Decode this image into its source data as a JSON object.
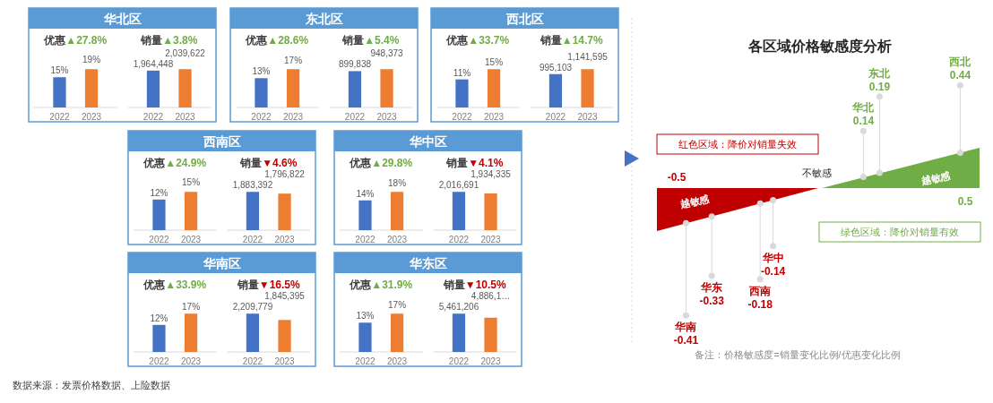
{
  "chart_data": [
    {
      "type": "bar",
      "title": "华北区",
      "subtitle": "优惠",
      "annotations": [
        "▲27.8%",
        "数据来源：发票价格数据、上险数据"
      ],
      "categories": [
        "2022",
        "2023"
      ],
      "values": [
        15,
        19
      ],
      "value_labels": [
        "15%",
        "19%"
      ],
      "colors": [
        "#4472c4",
        "#ed7d31"
      ]
    },
    {
      "type": "bar",
      "subtitle": "销量",
      "annotations": [
        "▲3.8%"
      ],
      "categories": [
        "2022",
        "2023"
      ],
      "values": [
        1964448,
        2039622
      ],
      "value_labels": [
        "1,964,448",
        "2,039,622"
      ],
      "colors": [
        "#4472c4",
        "#ed7d31"
      ]
    },
    {
      "type": "bar",
      "title": "东北区",
      "subtitle": "优惠",
      "annotations": [
        "▲28.6%"
      ],
      "categories": [
        "2022",
        "2023"
      ],
      "values": [
        13,
        17
      ],
      "value_labels": [
        "13%",
        "17%"
      ],
      "colors": [
        "#4472c4",
        "#ed7d31"
      ]
    },
    {
      "type": "bar",
      "subtitle": "销量",
      "annotations": [
        "▲5.4%"
      ],
      "categories": [
        "2022",
        "2023"
      ],
      "values": [
        899838,
        948373
      ],
      "value_labels": [
        "899,838",
        "948,373"
      ],
      "colors": [
        "#4472c4",
        "#ed7d31"
      ]
    },
    {
      "type": "bar",
      "title": "西北区",
      "subtitle": "优惠",
      "annotations": [
        "▲33.7%"
      ],
      "categories": [
        "2022",
        "2023"
      ],
      "values": [
        11,
        15
      ],
      "value_labels": [
        "11%",
        "15%"
      ],
      "colors": [
        "#4472c4",
        "#ed7d31"
      ]
    },
    {
      "type": "bar",
      "subtitle": "销量",
      "annotations": [
        "▲14.7%"
      ],
      "categories": [
        "2022",
        "2023"
      ],
      "values": [
        995103,
        1141595
      ],
      "value_labels": [
        "995,103",
        "1,141,595"
      ],
      "colors": [
        "#4472c4",
        "#ed7d31"
      ]
    },
    {
      "type": "bar",
      "title": "西南区",
      "subtitle": "优惠",
      "annotations": [
        "▲24.9%"
      ],
      "categories": [
        "2022",
        "2023"
      ],
      "values": [
        12,
        15
      ],
      "value_labels": [
        "12%",
        "15%"
      ],
      "colors": [
        "#4472c4",
        "#ed7d31"
      ]
    },
    {
      "type": "bar",
      "subtitle": "销量",
      "annotations": [
        "▼4.6%"
      ],
      "categories": [
        "2022",
        "2023"
      ],
      "values": [
        1883392,
        1796822
      ],
      "value_labels": [
        "1,883,392",
        "1,796,822"
      ],
      "colors": [
        "#4472c4",
        "#ed7d31"
      ]
    },
    {
      "type": "bar",
      "title": "华中区",
      "subtitle": "优惠",
      "annotations": [
        "▲29.8%"
      ],
      "categories": [
        "2022",
        "2023"
      ],
      "values": [
        14,
        18
      ],
      "value_labels": [
        "14%",
        "18%"
      ],
      "colors": [
        "#4472c4",
        "#ed7d31"
      ]
    },
    {
      "type": "bar",
      "subtitle": "销量",
      "annotations": [
        "▼4.1%"
      ],
      "categories": [
        "2022",
        "2023"
      ],
      "values": [
        2016691,
        1934335
      ],
      "value_labels": [
        "2,016,691",
        "1,934,335"
      ],
      "colors": [
        "#4472c4",
        "#ed7d31"
      ]
    },
    {
      "type": "bar",
      "title": "华南区",
      "subtitle": "优惠",
      "annotations": [
        "▲33.9%"
      ],
      "categories": [
        "2022",
        "2023"
      ],
      "values": [
        12,
        17
      ],
      "value_labels": [
        "12%",
        "17%"
      ],
      "colors": [
        "#4472c4",
        "#ed7d31"
      ]
    },
    {
      "type": "bar",
      "subtitle": "销量",
      "annotations": [
        "▼16.5%"
      ],
      "categories": [
        "2022",
        "2023"
      ],
      "values": [
        2209779,
        1845395
      ],
      "value_labels": [
        "2,209,779",
        "1,845,395"
      ],
      "colors": [
        "#4472c4",
        "#ed7d31"
      ]
    },
    {
      "type": "bar",
      "title": "华东区",
      "subtitle": "优惠",
      "annotations": [
        "▲31.9%"
      ],
      "categories": [
        "2022",
        "2023"
      ],
      "values": [
        13,
        17
      ],
      "value_labels": [
        "13%",
        "17%"
      ],
      "colors": [
        "#4472c4",
        "#ed7d31"
      ]
    },
    {
      "type": "bar",
      "subtitle": "销量",
      "annotations": [
        "▼10.5%"
      ],
      "categories": [
        "2022",
        "2023"
      ],
      "values": [
        5461206,
        4886100
      ],
      "value_labels": [
        "5,461,206",
        "4,886,1…"
      ],
      "colors": [
        "#4472c4",
        "#ed7d31"
      ]
    },
    {
      "type": "other",
      "title": "各区域价格敏感度分析",
      "categories": [
        "华北",
        "东北",
        "西北",
        "西南",
        "华中",
        "华南",
        "华东"
      ],
      "values": [
        0.14,
        0.19,
        0.44,
        -0.18,
        -0.14,
        -0.41,
        -0.33
      ],
      "data_labels": true,
      "colors": [
        "#70ad47",
        "#70ad47",
        "#70ad47",
        "#c00000",
        "#c00000",
        "#c00000",
        "#c00000"
      ],
      "annotations": [
        "红色区域：降价对销量失效",
        "绿色区域：降价对销量有效",
        "不敏感",
        "越敏感",
        "越敏感",
        "备注：价格敏感度=销量变化比例/优惠变化比例",
        "-0.5",
        "0.5"
      ]
    }
  ]
}
